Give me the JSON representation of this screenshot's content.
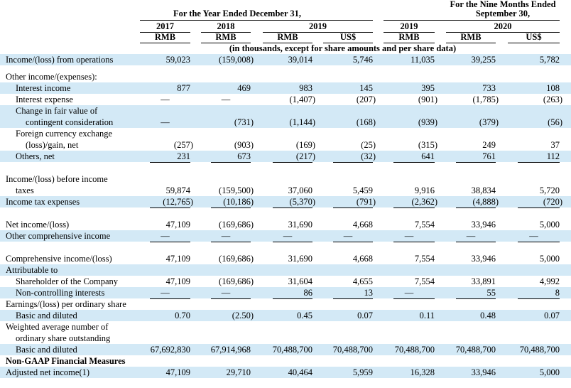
{
  "header": {
    "year_group": "For the Year Ended December 31,",
    "nine_months_group": [
      "For the Nine Months Ended",
      "September 30,"
    ],
    "years": [
      "2017",
      "2018",
      "2019",
      "2019",
      "2020"
    ],
    "currencies": [
      "RMB",
      "RMB",
      "RMB",
      "US$",
      "RMB",
      "RMB",
      "US$"
    ],
    "units_note": "(in thousands, except for share amounts and per share data)"
  },
  "table": {
    "rows": [
      {
        "label": "Income/(loss) from operations",
        "values": [
          "59,023",
          "(159,008)",
          "39,014",
          "5,746",
          "11,035",
          "39,255",
          "5,782"
        ]
      },
      {
        "label": "Other income/(expenses):"
      },
      {
        "label": "Interest income",
        "values": [
          "877",
          "469",
          "983",
          "145",
          "395",
          "733",
          "108"
        ]
      },
      {
        "label": "Interest expense",
        "values": [
          "—",
          "—",
          "(1,407)",
          "(207)",
          "(901)",
          "(1,785)",
          "(263)"
        ]
      },
      {
        "label": "Change in fair value of"
      },
      {
        "label": "contingent consideration",
        "values": [
          "—",
          "(731)",
          "(1,144)",
          "(168)",
          "(939)",
          "(379)",
          "(56)"
        ]
      },
      {
        "label": "Foreign currency exchange"
      },
      {
        "label": "(loss)/gain, net",
        "values": [
          "(257)",
          "(903)",
          "(169)",
          "(25)",
          "(315)",
          "249",
          "37"
        ]
      },
      {
        "label": "Others, net",
        "values": [
          "231",
          "673",
          "(217)",
          "(32)",
          "641",
          "761",
          "112"
        ]
      },
      {
        "label": "Income/(loss) before income"
      },
      {
        "label": "taxes",
        "values": [
          "59,874",
          "(159,500)",
          "37,060",
          "5,459",
          "9,916",
          "38,834",
          "5,720"
        ]
      },
      {
        "label": "Income tax expenses",
        "values": [
          "(12,765)",
          "(10,186)",
          "(5,370)",
          "(791)",
          "(2,362)",
          "(4,888)",
          "(720)"
        ]
      },
      {
        "label": "Net income/(loss)",
        "values": [
          "47,109",
          "(169,686)",
          "31,690",
          "4,668",
          "7,554",
          "33,946",
          "5,000"
        ]
      },
      {
        "label": "Other comprehensive income",
        "values": [
          "—",
          "—",
          "—",
          "—",
          "—",
          "—",
          "—"
        ]
      },
      {
        "label": "Comprehensive income/(loss)",
        "values": [
          "47,109",
          "(169,686)",
          "31,690",
          "4,668",
          "7,554",
          "33,946",
          "5,000"
        ]
      },
      {
        "label": "Attributable to"
      },
      {
        "label": "Shareholder of the Company",
        "values": [
          "47,109",
          "(169,686)",
          "31,604",
          "4,655",
          "7,554",
          "33,891",
          "4,992"
        ]
      },
      {
        "label": "Non-controlling interests",
        "values": [
          "—",
          "—",
          "86",
          "13",
          "—",
          "55",
          "8"
        ]
      },
      {
        "label": "Earnings/(loss) per ordinary share"
      },
      {
        "label": "Basic and diluted",
        "values": [
          "0.70",
          "(2.50)",
          "0.45",
          "0.07",
          "0.11",
          "0.48",
          "0.07"
        ]
      },
      {
        "label": "Weighted average number of"
      },
      {
        "label": "ordinary share outstanding"
      },
      {
        "label": "Basic and diluted",
        "values": [
          "67,692,830",
          "67,914,968",
          "70,488,700",
          "70,488,700",
          "70,488,700",
          "70,488,700",
          "70,488,700"
        ]
      },
      {
        "label": "Non-GAAP Financial Measures"
      },
      {
        "label": "Adjusted net income(1)",
        "values": [
          "47,109",
          "29,710",
          "40,464",
          "5,959",
          "16,328",
          "33,946",
          "5,000"
        ]
      }
    ]
  }
}
